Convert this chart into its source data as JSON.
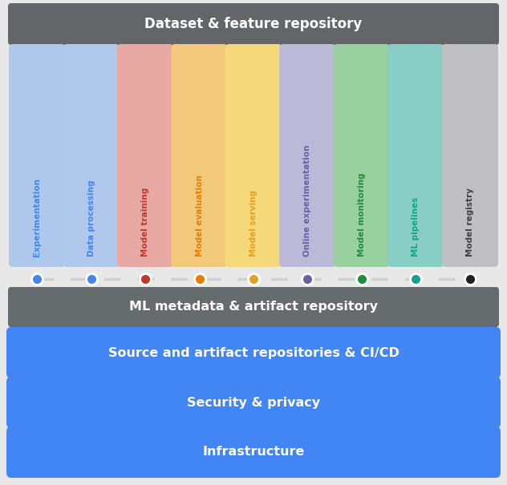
{
  "background_color": "#e8e8e8",
  "title_bar": {
    "text": "Dataset & feature repository",
    "bg_color": "#636568",
    "text_color": "#ffffff",
    "fontsize": 12,
    "fontweight": "bold"
  },
  "columns": [
    {
      "label": "Experimentation",
      "bar_color": "#adc8ea",
      "dot_color": "#4285f4",
      "text_color": "#4285f4"
    },
    {
      "label": "Data processing",
      "bar_color": "#b0c8ec",
      "dot_color": "#4285f4",
      "text_color": "#4285f4"
    },
    {
      "label": "Model training",
      "bar_color": "#e8a8a4",
      "dot_color": "#c0392b",
      "text_color": "#c0392b"
    },
    {
      "label": "Model evaluation",
      "bar_color": "#f2c97a",
      "dot_color": "#e67e00",
      "text_color": "#e67e00"
    },
    {
      "label": "Model serving",
      "bar_color": "#f5d87a",
      "dot_color": "#e8a020",
      "text_color": "#e8a020"
    },
    {
      "label": "Online experimentation",
      "bar_color": "#bbb8d8",
      "dot_color": "#6264a7",
      "text_color": "#6264a7"
    },
    {
      "label": "Model monitoring",
      "bar_color": "#98d0a0",
      "dot_color": "#1e8e3e",
      "text_color": "#1e8e3e"
    },
    {
      "label": "ML pipelines",
      "bar_color": "#88cec4",
      "dot_color": "#12a48d",
      "text_color": "#12a48d"
    },
    {
      "label": "Model registry",
      "bar_color": "#c0c0c4",
      "dot_color": "#202124",
      "text_color": "#404040"
    }
  ],
  "metadata_bar": {
    "text": "ML metadata & artifact repository",
    "bg_color": "#666b6e",
    "text_color": "#ffffff",
    "fontsize": 11.5,
    "fontweight": "bold"
  },
  "bottom_bars": [
    {
      "text": "Source and artifact repositories & CI/CD",
      "bg_color": "#4285f4",
      "text_color": "#ffffff",
      "fontsize": 11.5,
      "fontweight": "bold"
    },
    {
      "text": "Security & privacy",
      "bg_color": "#4285f4",
      "text_color": "#ffffff",
      "fontsize": 11.5,
      "fontweight": "bold"
    },
    {
      "text": "Infrastructure",
      "bg_color": "#4285f4",
      "text_color": "#ffffff",
      "fontsize": 11.5,
      "fontweight": "bold"
    }
  ]
}
